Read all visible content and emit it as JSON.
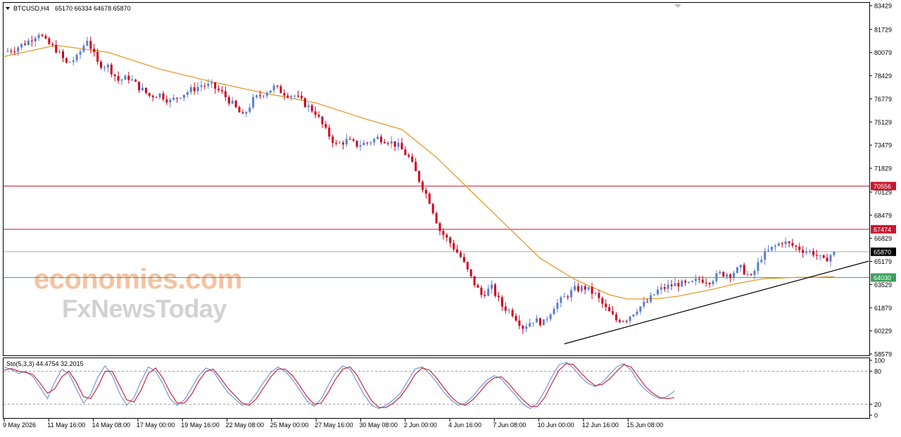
{
  "header": {
    "symbol": "BTCUSD,H4",
    "ohlc": "65170 66334 64678 65870"
  },
  "indicator_header": {
    "label": "Sto(5,3,3) 44.4754 32.2015"
  },
  "watermark": {
    "line1": "economies.com",
    "line2": "FxNewsToday"
  },
  "colors": {
    "bull": "#5b7fd1",
    "bear": "#d0021b",
    "ma": "#e59a2c",
    "resistance": "#c5172f",
    "support": "#3aa15e",
    "current": "#000000",
    "trendline": "#000000",
    "stoch_main": "#6a8fdd",
    "stoch_signal": "#c5172f"
  },
  "chart_data": [
    {
      "type": "candlestick",
      "symbol": "BTCUSD",
      "timeframe": "H4",
      "ylim": [
        58579,
        83429
      ],
      "y_ticks": [
        83429,
        81729,
        80079,
        78429,
        76779,
        75129,
        73479,
        71829,
        70129,
        68479,
        66829,
        65179,
        63529,
        61879,
        60229,
        58579
      ],
      "x_ticks": [
        "9 May 2026",
        "11 May 16:00",
        "14 May 08:00",
        "17 May 00:00",
        "19 May 16:00",
        "22 May 08:00",
        "25 May 00:00",
        "27 May 16:00",
        "30 May 08:00",
        "2 Jun 00:00",
        "4 Jun 16:00",
        "7 Jun 08:00",
        "10 Jun 00:00",
        "12 Jun 16:00",
        "15 Jun 08:00"
      ],
      "price_path": [
        [
          0,
          80150
        ],
        [
          3,
          80350
        ],
        [
          7,
          80900
        ],
        [
          10,
          81500
        ],
        [
          12,
          80850
        ],
        [
          15,
          80300
        ],
        [
          18,
          79300
        ],
        [
          21,
          79700
        ],
        [
          24,
          81050
        ],
        [
          27,
          79300
        ],
        [
          30,
          79100
        ],
        [
          33,
          78100
        ],
        [
          36,
          78300
        ],
        [
          39,
          77600
        ],
        [
          42,
          77000
        ],
        [
          45,
          77100
        ],
        [
          48,
          76600
        ],
        [
          51,
          77050
        ],
        [
          54,
          77400
        ],
        [
          57,
          77750
        ],
        [
          60,
          77700
        ],
        [
          63,
          77200
        ],
        [
          66,
          76400
        ],
        [
          69,
          75500
        ],
        [
          72,
          76700
        ],
        [
          75,
          77200
        ],
        [
          78,
          77600
        ],
        [
          81,
          77200
        ],
        [
          84,
          77000
        ],
        [
          87,
          76400
        ],
        [
          90,
          75800
        ],
        [
          93,
          74500
        ],
        [
          96,
          73500
        ],
        [
          99,
          73800
        ],
        [
          102,
          73500
        ],
        [
          105,
          73650
        ],
        [
          108,
          74000
        ],
        [
          111,
          73800
        ],
        [
          114,
          73400
        ],
        [
          117,
          72600
        ],
        [
          120,
          71000
        ],
        [
          123,
          69500
        ],
        [
          126,
          67400
        ],
        [
          129,
          66500
        ],
        [
          132,
          65500
        ],
        [
          135,
          64000
        ],
        [
          138,
          62800
        ],
        [
          141,
          63300
        ],
        [
          144,
          62000
        ],
        [
          147,
          61500
        ],
        [
          150,
          60500
        ],
        [
          153,
          61000
        ],
        [
          156,
          60800
        ],
        [
          159,
          62000
        ],
        [
          162,
          62600
        ],
        [
          165,
          63200
        ],
        [
          168,
          63300
        ],
        [
          171,
          62800
        ],
        [
          174,
          61800
        ],
        [
          177,
          61000
        ],
        [
          180,
          61100
        ],
        [
          183,
          61800
        ],
        [
          186,
          62300
        ],
        [
          189,
          63100
        ],
        [
          192,
          63400
        ],
        [
          195,
          63600
        ],
        [
          198,
          63500
        ],
        [
          201,
          63900
        ],
        [
          204,
          63800
        ],
        [
          207,
          64300
        ],
        [
          210,
          64300
        ],
        [
          213,
          64700
        ],
        [
          216,
          64000
        ],
        [
          219,
          65500
        ],
        [
          222,
          66100
        ],
        [
          225,
          66600
        ],
        [
          228,
          66300
        ],
        [
          231,
          66000
        ],
        [
          234,
          65800
        ],
        [
          237,
          65200
        ],
        [
          240,
          65870
        ]
      ],
      "moving_average": [
        [
          0,
          79800
        ],
        [
          15,
          80600
        ],
        [
          30,
          80100
        ],
        [
          45,
          78900
        ],
        [
          60,
          78000
        ],
        [
          75,
          77200
        ],
        [
          90,
          76500
        ],
        [
          105,
          75300
        ],
        [
          115,
          74600
        ],
        [
          125,
          72600
        ],
        [
          135,
          70200
        ],
        [
          145,
          67800
        ],
        [
          155,
          65400
        ],
        [
          165,
          63900
        ],
        [
          175,
          62800
        ],
        [
          180,
          62500
        ],
        [
          185,
          62500
        ],
        [
          190,
          62550
        ],
        [
          195,
          62700
        ],
        [
          200,
          62950
        ],
        [
          205,
          63200
        ],
        [
          210,
          63500
        ],
        [
          215,
          63750
        ],
        [
          220,
          63950
        ],
        [
          225,
          64000
        ],
        [
          230,
          64050
        ],
        [
          235,
          64050
        ],
        [
          240,
          64100
        ]
      ],
      "horizontal_levels": [
        {
          "value": 70556,
          "label": "70556",
          "kind": "resistance"
        },
        {
          "value": 67474,
          "label": "67474",
          "kind": "resistance"
        },
        {
          "value": 65870,
          "label": "65870",
          "kind": "current"
        },
        {
          "value": 64030,
          "label": "64030",
          "kind": "support"
        }
      ],
      "trendline": {
        "from": [
          162,
          59300
        ],
        "to": [
          250,
          65200
        ]
      }
    },
    {
      "type": "line",
      "title": "Sto(5,3,3) 44.4754 32.2015",
      "ylim": [
        0,
        100
      ],
      "y_ticks": [
        "100",
        "80",
        "20",
        "0"
      ],
      "levels": [
        80,
        20
      ],
      "series": [
        {
          "role": "main",
          "values": [
            88,
            83,
            76,
            80,
            70,
            50,
            30,
            60,
            84,
            75,
            48,
            22,
            38,
            70,
            90,
            72,
            40,
            18,
            32,
            62,
            88,
            80,
            58,
            30,
            18,
            28,
            50,
            72,
            86,
            80,
            60,
            42,
            30,
            18,
            22,
            40,
            60,
            78,
            88,
            80,
            65,
            46,
            26,
            16,
            30,
            55,
            78,
            90,
            84,
            60,
            36,
            18,
            12,
            18,
            28,
            40,
            62,
            84,
            88,
            76,
            60,
            42,
            28,
            18,
            22,
            34,
            50,
            64,
            72,
            66,
            50,
            36,
            20,
            12,
            22,
            44,
            70,
            92,
            96,
            86,
            70,
            58,
            52,
            60,
            74,
            88,
            94,
            82,
            60,
            46,
            36,
            30,
            34,
            44
          ]
        },
        {
          "role": "signal",
          "values": [
            82,
            85,
            80,
            78,
            74,
            58,
            40,
            48,
            70,
            80,
            60,
            34,
            30,
            52,
            80,
            80,
            54,
            28,
            24,
            46,
            76,
            86,
            68,
            42,
            22,
            22,
            38,
            62,
            80,
            84,
            68,
            50,
            36,
            22,
            18,
            30,
            50,
            70,
            84,
            84,
            72,
            54,
            34,
            20,
            22,
            42,
            66,
            84,
            88,
            72,
            48,
            26,
            14,
            14,
            22,
            34,
            52,
            74,
            86,
            82,
            68,
            50,
            34,
            22,
            18,
            28,
            42,
            58,
            68,
            70,
            58,
            42,
            28,
            16,
            16,
            32,
            58,
            82,
            94,
            92,
            78,
            64,
            54,
            56,
            66,
            80,
            92,
            88,
            70,
            52,
            40,
            32,
            30,
            32
          ]
        }
      ]
    }
  ]
}
